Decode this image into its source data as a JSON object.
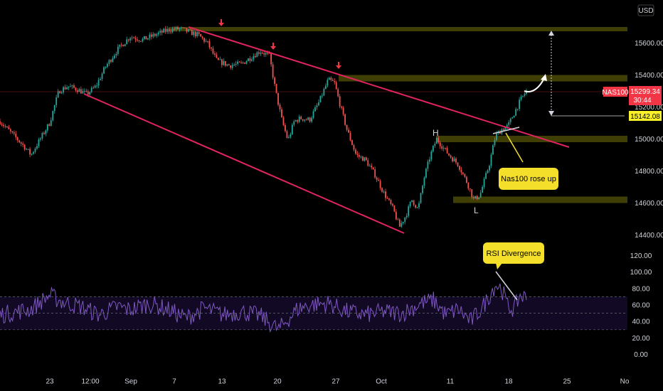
{
  "chart_data": [
    {
      "type": "candlestick",
      "symbol_tag": "NAS100",
      "currency": "USD",
      "last_price": "15299.34",
      "countdown": "30:44",
      "target_price_tag": "15142.08",
      "ylim": [
        14380,
        15780
      ],
      "y_ticks": [
        "15600.00",
        "15400.00",
        "15200.00",
        "15000.00",
        "14800.00",
        "14600.00",
        "14400.00"
      ],
      "x_ticks": [
        "23",
        "12:00",
        "Sep",
        "7",
        "13",
        "20",
        "27",
        "Oct",
        "11",
        "18",
        "25",
        "No"
      ],
      "path_points": [
        [
          0,
          15110
        ],
        [
          0.02,
          15030
        ],
        [
          0.04,
          14950
        ],
        [
          0.05,
          14900
        ],
        [
          0.065,
          15000
        ],
        [
          0.08,
          15100
        ],
        [
          0.095,
          15300
        ],
        [
          0.11,
          15330
        ],
        [
          0.125,
          15310
        ],
        [
          0.14,
          15280
        ],
        [
          0.155,
          15330
        ],
        [
          0.17,
          15450
        ],
        [
          0.19,
          15560
        ],
        [
          0.21,
          15640
        ],
        [
          0.23,
          15620
        ],
        [
          0.25,
          15650
        ],
        [
          0.27,
          15680
        ],
        [
          0.29,
          15690
        ],
        [
          0.305,
          15670
        ],
        [
          0.32,
          15650
        ],
        [
          0.335,
          15600
        ],
        [
          0.35,
          15490
        ],
        [
          0.37,
          15460
        ],
        [
          0.39,
          15470
        ],
        [
          0.405,
          15510
        ],
        [
          0.42,
          15550
        ],
        [
          0.435,
          15520
        ],
        [
          0.445,
          15300
        ],
        [
          0.455,
          15120
        ],
        [
          0.465,
          14990
        ],
        [
          0.475,
          15110
        ],
        [
          0.485,
          15130
        ],
        [
          0.5,
          15120
        ],
        [
          0.515,
          15230
        ],
        [
          0.53,
          15370
        ],
        [
          0.54,
          15350
        ],
        [
          0.55,
          15200
        ],
        [
          0.56,
          15060
        ],
        [
          0.575,
          14900
        ],
        [
          0.59,
          14870
        ],
        [
          0.605,
          14780
        ],
        [
          0.62,
          14660
        ],
        [
          0.635,
          14560
        ],
        [
          0.645,
          14450
        ],
        [
          0.655,
          14520
        ],
        [
          0.665,
          14620
        ],
        [
          0.675,
          14560
        ],
        [
          0.685,
          14760
        ],
        [
          0.695,
          14900
        ],
        [
          0.705,
          15000
        ],
        [
          0.715,
          14950
        ],
        [
          0.725,
          14900
        ],
        [
          0.74,
          14840
        ],
        [
          0.755,
          14720
        ],
        [
          0.765,
          14620
        ],
        [
          0.775,
          14650
        ],
        [
          0.79,
          14840
        ],
        [
          0.8,
          15020
        ],
        [
          0.81,
          15060
        ],
        [
          0.82,
          15080
        ],
        [
          0.83,
          15160
        ],
        [
          0.84,
          15240
        ],
        [
          0.85,
          15300
        ]
      ],
      "zones": [
        {
          "y0": 15680,
          "y1": 15700
        },
        {
          "y0": 15360,
          "y1": 15400
        },
        {
          "y0": 14980,
          "y1": 15020
        },
        {
          "y0": 14600,
          "y1": 14640
        }
      ],
      "annotations": {
        "head_label": "H",
        "low_label": "L",
        "callout_price": "Nas100 rose up",
        "callout_rsi": "RSI Divergence"
      }
    },
    {
      "type": "line",
      "name": "RSI",
      "ylim": [
        -10,
        130
      ],
      "y_ticks": [
        "120.00",
        "100.00",
        "80.00",
        "60.00",
        "40.00",
        "20.00",
        "0.00"
      ],
      "band": [
        30,
        70
      ],
      "mid": 50,
      "path_points": [
        [
          0,
          48
        ],
        [
          0.05,
          55
        ],
        [
          0.08,
          72
        ],
        [
          0.1,
          64
        ],
        [
          0.13,
          58
        ],
        [
          0.16,
          48
        ],
        [
          0.19,
          58
        ],
        [
          0.21,
          54
        ],
        [
          0.24,
          62
        ],
        [
          0.27,
          55
        ],
        [
          0.3,
          44
        ],
        [
          0.33,
          56
        ],
        [
          0.36,
          48
        ],
        [
          0.39,
          52
        ],
        [
          0.42,
          47
        ],
        [
          0.45,
          30
        ],
        [
          0.48,
          55
        ],
        [
          0.5,
          60
        ],
        [
          0.53,
          62
        ],
        [
          0.56,
          52
        ],
        [
          0.59,
          48
        ],
        [
          0.62,
          52
        ],
        [
          0.65,
          50
        ],
        [
          0.68,
          62
        ],
        [
          0.7,
          66
        ],
        [
          0.72,
          48
        ],
        [
          0.74,
          55
        ],
        [
          0.76,
          40
        ],
        [
          0.78,
          58
        ],
        [
          0.8,
          85
        ],
        [
          0.81,
          80
        ],
        [
          0.82,
          58
        ],
        [
          0.83,
          55
        ],
        [
          0.84,
          72
        ],
        [
          0.85,
          68
        ]
      ]
    }
  ],
  "colors": {
    "background": "#000000",
    "up": "#26a69a",
    "down": "#ef5350",
    "channel": "#e0245e",
    "zone": "#4a4a06",
    "rsi_line": "#7e57c2",
    "rsi_band_fill": "#120a24",
    "callout_bg": "#f4e02a",
    "price_tag_bg": "#f23645",
    "target_tag_bg": "#f9f02a",
    "arrow_marker": "#f23645"
  }
}
